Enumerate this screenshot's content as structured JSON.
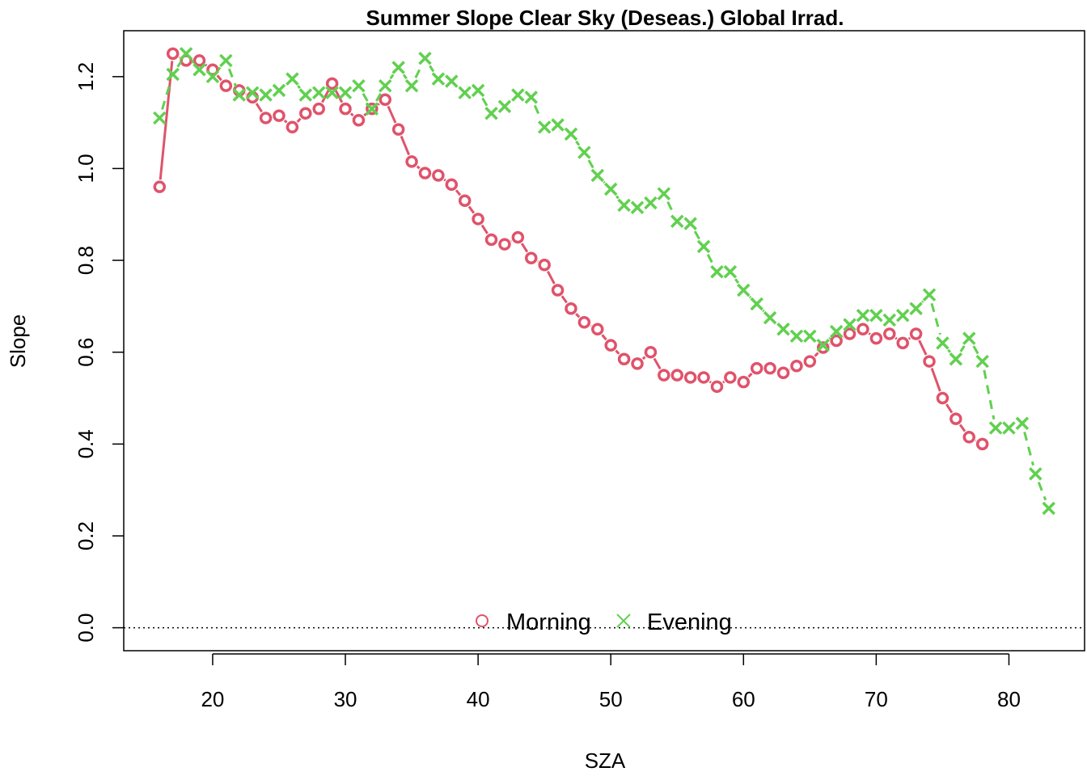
{
  "chart_data": {
    "type": "line",
    "title": "Summer Slope Clear Sky (Deseas.) Global Irrad.",
    "xlabel": "SZA",
    "ylabel": "Slope",
    "xlim": [
      13.3,
      85.7
    ],
    "ylim": [
      -0.05,
      1.3
    ],
    "x_ticks": [
      20,
      30,
      40,
      50,
      60,
      70,
      80
    ],
    "y_ticks": [
      0.0,
      0.2,
      0.4,
      0.6,
      0.8,
      1.0,
      1.2
    ],
    "x_tick_labels": [
      "20",
      "30",
      "40",
      "50",
      "60",
      "70",
      "80"
    ],
    "y_tick_labels": [
      "0.0",
      "0.2",
      "0.4",
      "0.6",
      "0.8",
      "1.0",
      "1.2"
    ],
    "reference_line": {
      "y": 0,
      "style": "dotted"
    },
    "legend": {
      "position": "bottom-center"
    },
    "grid": false,
    "series": [
      {
        "name": "Morning",
        "marker": "circle",
        "color": "#DF536B",
        "x": [
          16,
          17,
          18,
          19,
          20,
          21,
          22,
          23,
          24,
          25,
          26,
          27,
          28,
          29,
          30,
          31,
          32,
          33,
          34,
          35,
          36,
          37,
          38,
          39,
          40,
          41,
          42,
          43,
          44,
          45,
          46,
          47,
          48,
          49,
          50,
          51,
          52,
          53,
          54,
          55,
          56,
          57,
          58,
          59,
          60,
          61,
          62,
          63,
          64,
          65,
          66,
          67,
          68,
          69,
          70,
          71,
          72,
          73,
          74,
          75,
          76,
          77,
          78
        ],
        "y": [
          0.96,
          1.25,
          1.235,
          1.235,
          1.215,
          1.18,
          1.17,
          1.155,
          1.11,
          1.115,
          1.09,
          1.12,
          1.13,
          1.185,
          1.13,
          1.105,
          1.13,
          1.15,
          1.085,
          1.015,
          0.99,
          0.985,
          0.965,
          0.93,
          0.89,
          0.845,
          0.835,
          0.85,
          0.805,
          0.79,
          0.735,
          0.695,
          0.665,
          0.65,
          0.615,
          0.585,
          0.575,
          0.6,
          0.55,
          0.55,
          0.545,
          0.545,
          0.525,
          0.545,
          0.535,
          0.565,
          0.565,
          0.555,
          0.57,
          0.58,
          0.61,
          0.625,
          0.64,
          0.65,
          0.63,
          0.64,
          0.62,
          0.64,
          0.58,
          0.5,
          0.455,
          0.415,
          0.4
        ]
      },
      {
        "name": "Evening",
        "marker": "cross",
        "color": "#61D04F",
        "x": [
          16,
          17,
          18,
          19,
          20,
          21,
          22,
          23,
          24,
          25,
          26,
          27,
          28,
          29,
          30,
          31,
          32,
          33,
          34,
          35,
          36,
          37,
          38,
          39,
          40,
          41,
          42,
          43,
          44,
          45,
          46,
          47,
          48,
          49,
          50,
          51,
          52,
          53,
          54,
          55,
          56,
          57,
          58,
          59,
          60,
          61,
          62,
          63,
          64,
          65,
          66,
          67,
          68,
          69,
          70,
          71,
          72,
          73,
          74,
          75,
          76,
          77,
          78,
          79,
          80,
          81,
          82,
          83
        ],
        "y": [
          1.11,
          1.205,
          1.25,
          1.215,
          1.2,
          1.235,
          1.16,
          1.165,
          1.16,
          1.17,
          1.195,
          1.16,
          1.165,
          1.165,
          1.165,
          1.18,
          1.13,
          1.18,
          1.22,
          1.18,
          1.24,
          1.195,
          1.19,
          1.165,
          1.17,
          1.12,
          1.135,
          1.16,
          1.155,
          1.09,
          1.095,
          1.075,
          1.035,
          0.985,
          0.955,
          0.92,
          0.915,
          0.925,
          0.945,
          0.885,
          0.88,
          0.83,
          0.775,
          0.775,
          0.735,
          0.705,
          0.675,
          0.65,
          0.635,
          0.635,
          0.615,
          0.645,
          0.66,
          0.68,
          0.68,
          0.67,
          0.68,
          0.695,
          0.725,
          0.62,
          0.585,
          0.63,
          0.58,
          0.435,
          0.435,
          0.445,
          0.335,
          0.26
        ]
      }
    ]
  }
}
